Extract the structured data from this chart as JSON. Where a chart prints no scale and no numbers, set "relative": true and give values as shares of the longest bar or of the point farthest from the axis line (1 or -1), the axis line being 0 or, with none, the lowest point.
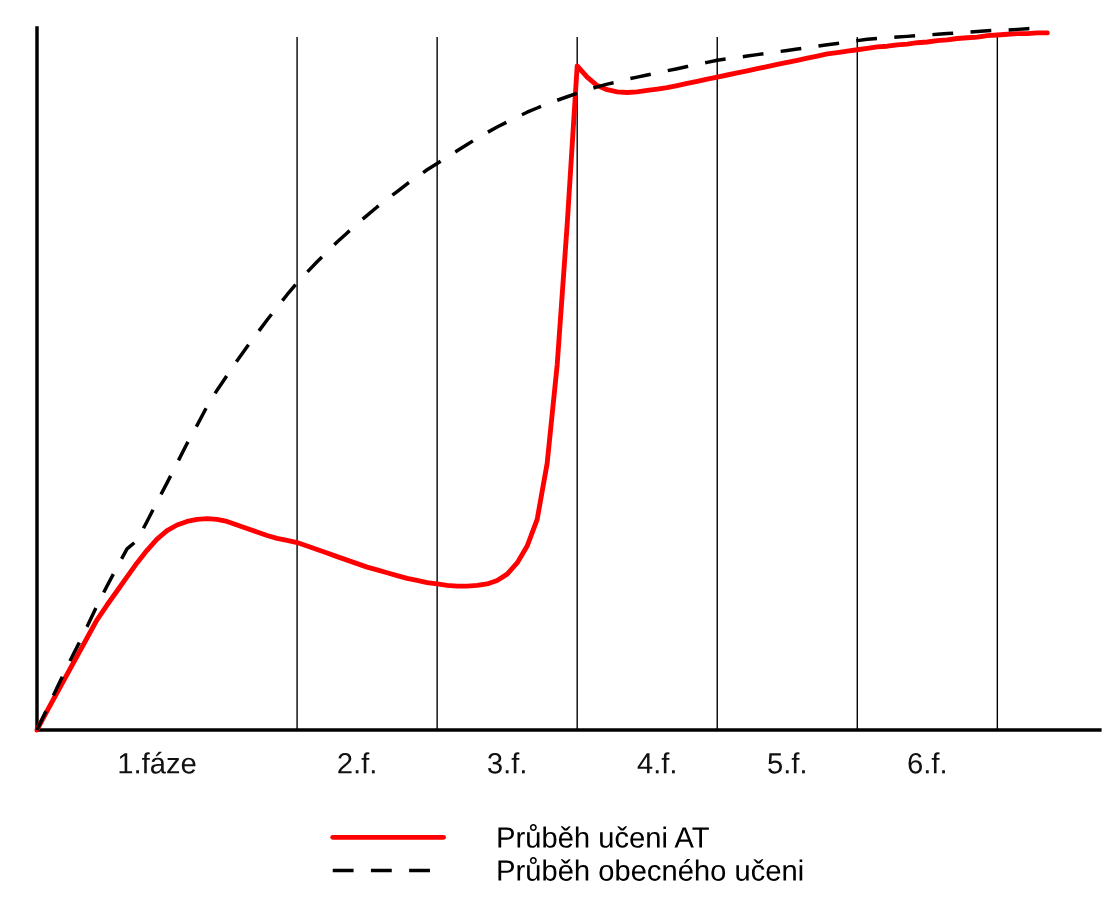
{
  "chart_data": {
    "type": "line",
    "relative": true,
    "tick_labels": "x",
    "legend": "bottom",
    "marker": "none",
    "categories": [
      null,
      null,
      null,
      null,
      null,
      null,
      null,
      null,
      null,
      null,
      null,
      null,
      "1.fáze",
      null,
      null,
      null,
      null,
      null,
      null,
      null,
      null,
      null,
      null,
      null,
      null,
      null,
      null,
      null,
      null,
      null,
      null,
      null,
      "2.f.",
      null,
      null,
      null,
      null,
      null,
      null,
      null,
      null,
      null,
      null,
      null,
      null,
      null,
      null,
      "3.f.",
      null,
      null,
      null,
      null,
      null,
      null,
      null,
      null,
      null,
      null,
      null,
      null,
      null,
      null,
      "4.f.",
      null,
      null,
      null,
      null,
      null,
      null,
      null,
      null,
      null,
      null,
      null,
      null,
      "5.f.",
      null,
      null,
      null,
      null,
      null,
      null,
      null,
      null,
      null,
      null,
      null,
      null,
      null,
      "6.f.",
      null,
      null,
      null,
      null,
      null,
      null,
      null,
      null,
      null,
      null,
      null,
      null
    ],
    "series": [
      {
        "name": "Průběh učeni AT",
        "color": "#ff0000",
        "line_style": "solid",
        "values": [
          0,
          0.027,
          0.053,
          0.079,
          0.105,
          0.131,
          0.157,
          0.178,
          0.198,
          0.218,
          0.238,
          0.256,
          0.272,
          0.284,
          0.292,
          0.297,
          0.3,
          0.301,
          0.3,
          0.297,
          0.292,
          0.287,
          0.282,
          0.277,
          0.273,
          0.27,
          0.267,
          0.262,
          0.257,
          0.252,
          0.247,
          0.242,
          0.237,
          0.232,
          0.228,
          0.224,
          0.22,
          0.216,
          0.213,
          0.21,
          0.208,
          0.206,
          0.205,
          0.205,
          0.206,
          0.208,
          0.213,
          0.222,
          0.238,
          0.262,
          0.3,
          0.38,
          0.52,
          0.72,
          0.946,
          0.93,
          0.918,
          0.912,
          0.909,
          0.908,
          0.909,
          0.911,
          0.913,
          0.915,
          0.918,
          0.921,
          0.924,
          0.927,
          0.93,
          0.933,
          0.936,
          0.939,
          0.942,
          0.945,
          0.948,
          0.951,
          0.954,
          0.957,
          0.96,
          0.963,
          0.965,
          0.967,
          0.969,
          0.971,
          0.973,
          0.974,
          0.976,
          0.977,
          0.979,
          0.98,
          0.982,
          0.983,
          0.985,
          0.986,
          0.987,
          0.989,
          0.99,
          0.991,
          0.992,
          0.992,
          0.993,
          0.993
        ]
      },
      {
        "name": "Průběh obecného učeni",
        "color": "#000000",
        "line_style": "dashed",
        "values": [
          0,
          0.03,
          0.06,
          0.09,
          0.118,
          0.147,
          0.177,
          0.205,
          0.232,
          0.258,
          0.27,
          0.297,
          0.325,
          0.352,
          0.38,
          0.408,
          0.434,
          0.461,
          0.484,
          0.505,
          0.526,
          0.546,
          0.565,
          0.584,
          0.602,
          0.62,
          0.637,
          0.652,
          0.667,
          0.681,
          0.695,
          0.708,
          0.721,
          0.733,
          0.745,
          0.756,
          0.767,
          0.778,
          0.788,
          0.798,
          0.807,
          0.816,
          0.825,
          0.834,
          0.843,
          0.851,
          0.859,
          0.866,
          0.873,
          0.88,
          0.886,
          0.892,
          0.897,
          0.902,
          0.907,
          0.912,
          0.916,
          0.92,
          0.923,
          0.927,
          0.93,
          0.933,
          0.936,
          0.939,
          0.942,
          0.945,
          0.948,
          0.951,
          0.954,
          0.956,
          0.958,
          0.96,
          0.962,
          0.964,
          0.966,
          0.968,
          0.97,
          0.972,
          0.974,
          0.976,
          0.978,
          0.98,
          0.982,
          0.984,
          0.985,
          0.986,
          0.987,
          0.988,
          0.989,
          0.99,
          0.991,
          0.992,
          0.993,
          0.994,
          0.995,
          0.996,
          0.997,
          0.997,
          0.998,
          0.999,
          1.0,
          null
        ]
      }
    ]
  }
}
